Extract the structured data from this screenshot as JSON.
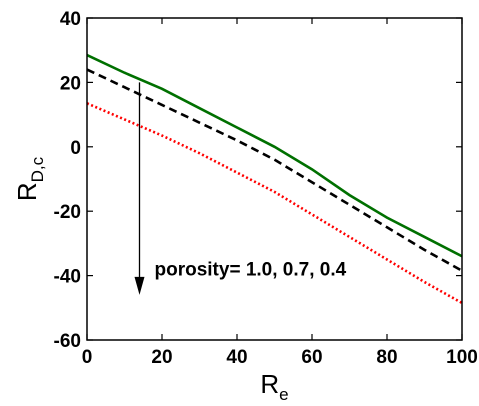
{
  "chart_data": {
    "type": "line",
    "xlabel": {
      "main": "R",
      "sub": "e"
    },
    "ylabel": {
      "main": "R",
      "sub": "D,c"
    },
    "xlim": [
      0,
      100
    ],
    "ylim": [
      -60,
      40
    ],
    "xticks": [
      0,
      20,
      40,
      60,
      80,
      100
    ],
    "yticks": [
      -60,
      -40,
      -20,
      0,
      20,
      40
    ],
    "grid": false,
    "legend": "none",
    "series": [
      {
        "color": "#007000",
        "style": "solid",
        "x": [
          0,
          10,
          20,
          30,
          40,
          50,
          60,
          70,
          80,
          90,
          100
        ],
        "y": [
          28.5,
          23,
          18,
          12,
          6,
          0,
          -7,
          -15,
          -22,
          -28,
          -34
        ]
      },
      {
        "color": "#000000",
        "style": "dashed",
        "x": [
          0,
          10,
          20,
          30,
          40,
          50,
          60,
          70,
          80,
          90,
          100
        ],
        "y": [
          24,
          18.5,
          13,
          7.5,
          2,
          -4,
          -11,
          -18,
          -25,
          -32,
          -38.5
        ]
      },
      {
        "color": "#ff0000",
        "style": "dotted",
        "x": [
          0,
          10,
          20,
          30,
          40,
          50,
          60,
          70,
          80,
          90,
          100
        ],
        "y": [
          13.5,
          8.5,
          3.5,
          -2,
          -8,
          -14,
          -21,
          -28,
          -35,
          -42,
          -48.5
        ]
      }
    ],
    "annotations": [
      {
        "text": "porosity= 1.0, 0.7, 0.4",
        "x": 18,
        "y": -40
      }
    ],
    "arrow": {
      "x": 14,
      "y_from": 20,
      "y_to": -46
    }
  }
}
